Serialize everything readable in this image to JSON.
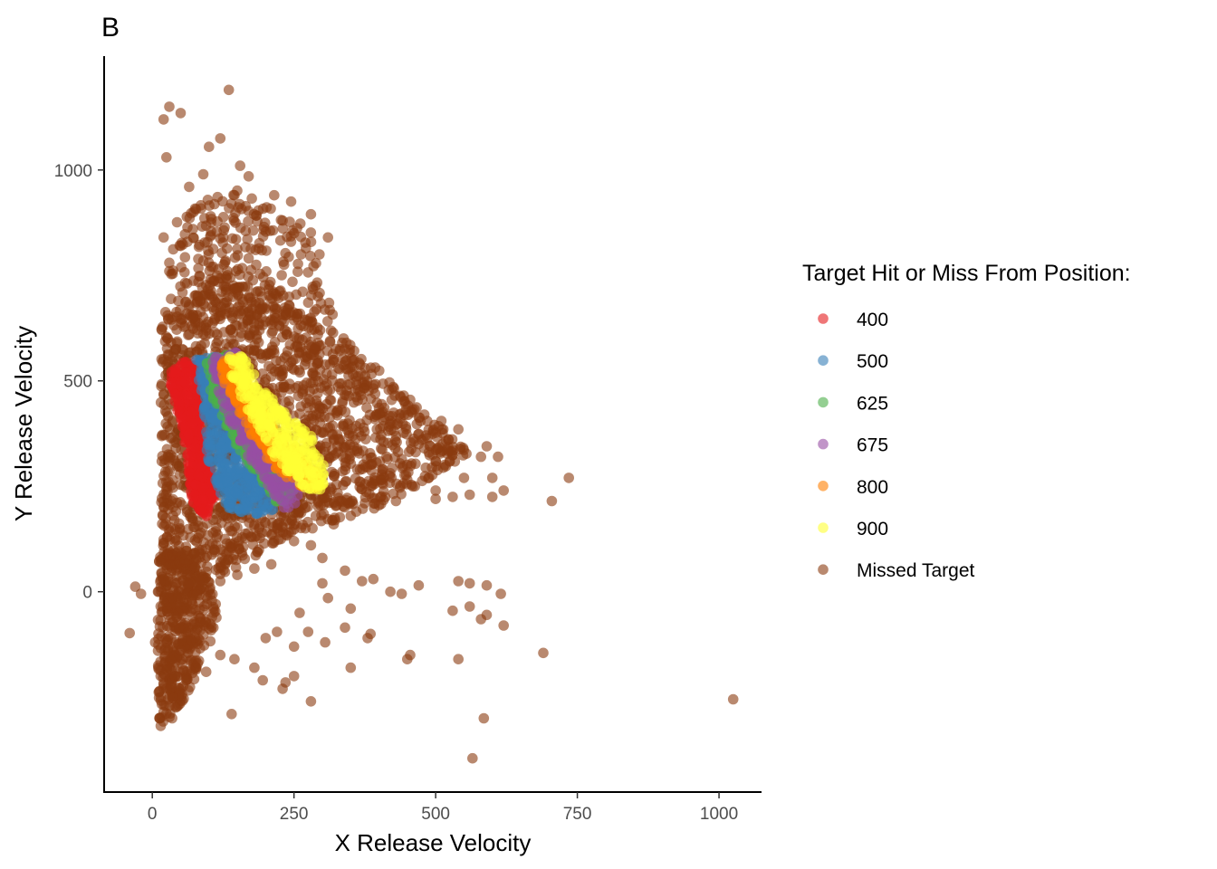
{
  "chart_data": {
    "type": "scatter",
    "panel_tag": "B",
    "title": "",
    "xlabel": "X Release Velocity",
    "ylabel": "Y Release Velocity",
    "xlim": [
      -85,
      1075
    ],
    "ylim": [
      -475,
      1270
    ],
    "x_ticks": [
      0,
      250,
      500,
      750,
      1000
    ],
    "x_tick_labels": [
      "0",
      "250",
      "500",
      "750",
      "1000"
    ],
    "y_ticks": [
      0,
      500,
      1000
    ],
    "y_tick_labels": [
      "0",
      "500",
      "1000"
    ],
    "grid": false,
    "legend": {
      "title": "Target Hit or Miss From Position:",
      "placement": "right",
      "entries": [
        {
          "label": "400",
          "color": "#E41A1C"
        },
        {
          "label": "500",
          "color": "#377EB8"
        },
        {
          "label": "625",
          "color": "#4DAF4A"
        },
        {
          "label": "675",
          "color": "#984EA3"
        },
        {
          "label": "800",
          "color": "#FF7F00"
        },
        {
          "label": "900",
          "color": "#FFFF33"
        },
        {
          "label": "Missed Target",
          "color": "#8B3A0F"
        }
      ]
    },
    "point_alpha": 0.6,
    "series": [
      {
        "name": "Missed Target",
        "color": "#8B3A0F",
        "cloud": [
          {
            "region": "main-triangle",
            "vertices": [
              [
                15,
                -20
              ],
              [
                15,
                640
              ],
              [
                120,
                760
              ],
              [
                330,
                610
              ],
              [
                560,
                330
              ],
              [
                420,
                210
              ],
              [
                210,
                110
              ],
              [
                60,
                -20
              ]
            ],
            "count": 1800
          },
          {
            "region": "lower-column",
            "vertices": [
              [
                10,
                -330
              ],
              [
                10,
                100
              ],
              [
                80,
                100
              ],
              [
                120,
                -60
              ],
              [
                60,
                -260
              ]
            ],
            "count": 420
          },
          {
            "region": "upper-fan",
            "vertices": [
              [
                20,
                640
              ],
              [
                40,
                900
              ],
              [
                140,
                960
              ],
              [
                280,
                860
              ],
              [
                330,
                640
              ]
            ],
            "count": 260
          }
        ],
        "outliers": [
          [
            -30,
            12
          ],
          [
            -20,
            -5
          ],
          [
            -40,
            -98
          ],
          [
            30,
            1150
          ],
          [
            20,
            1120
          ],
          [
            50,
            1135
          ],
          [
            135,
            1190
          ],
          [
            100,
            1055
          ],
          [
            120,
            1075
          ],
          [
            25,
            1030
          ],
          [
            90,
            990
          ],
          [
            155,
            1010
          ],
          [
            170,
            985
          ],
          [
            65,
            960
          ],
          [
            145,
            940
          ],
          [
            215,
            940
          ],
          [
            245,
            925
          ],
          [
            230,
            880
          ],
          [
            280,
            895
          ],
          [
            250,
            850
          ],
          [
            310,
            840
          ],
          [
            20,
            840
          ],
          [
            30,
            780
          ],
          [
            50,
            820
          ],
          [
            30,
            760
          ],
          [
            295,
            800
          ],
          [
            455,
            455
          ],
          [
            480,
            420
          ],
          [
            510,
            405
          ],
          [
            540,
            385
          ],
          [
            590,
            345
          ],
          [
            610,
            320
          ],
          [
            580,
            320
          ],
          [
            600,
            270
          ],
          [
            620,
            240
          ],
          [
            560,
            230
          ],
          [
            600,
            225
          ],
          [
            735,
            270
          ],
          [
            705,
            215
          ],
          [
            550,
            270
          ],
          [
            500,
            240
          ],
          [
            530,
            225
          ],
          [
            500,
            220
          ],
          [
            400,
            205
          ],
          [
            375,
            210
          ],
          [
            350,
            180
          ],
          [
            320,
            160
          ],
          [
            430,
            215
          ],
          [
            280,
            110
          ],
          [
            300,
            80
          ],
          [
            340,
            50
          ],
          [
            370,
            25
          ],
          [
            300,
            20
          ],
          [
            310,
            -15
          ],
          [
            390,
            30
          ],
          [
            420,
            0
          ],
          [
            440,
            -5
          ],
          [
            470,
            15
          ],
          [
            540,
            25
          ],
          [
            560,
            20
          ],
          [
            590,
            15
          ],
          [
            615,
            -5
          ],
          [
            530,
            -45
          ],
          [
            560,
            -35
          ],
          [
            590,
            -55
          ],
          [
            620,
            -80
          ],
          [
            580,
            -65
          ],
          [
            380,
            -110
          ],
          [
            385,
            -100
          ],
          [
            450,
            -160
          ],
          [
            455,
            -150
          ],
          [
            540,
            -160
          ],
          [
            690,
            -145
          ],
          [
            1025,
            -255
          ],
          [
            585,
            -300
          ],
          [
            565,
            -395
          ],
          [
            340,
            -85
          ],
          [
            305,
            -120
          ],
          [
            275,
            -95
          ],
          [
            250,
            -130
          ],
          [
            220,
            -95
          ],
          [
            200,
            -110
          ],
          [
            235,
            -215
          ],
          [
            250,
            -200
          ],
          [
            230,
            -230
          ],
          [
            195,
            -210
          ],
          [
            180,
            -180
          ],
          [
            140,
            -290
          ],
          [
            280,
            -260
          ],
          [
            350,
            -180
          ],
          [
            350,
            -40
          ],
          [
            260,
            -50
          ],
          [
            145,
            -160
          ],
          [
            120,
            -150
          ],
          [
            95,
            -190
          ],
          [
            80,
            -170
          ],
          [
            60,
            -155
          ],
          [
            40,
            -270
          ],
          [
            35,
            -300
          ],
          [
            45,
            -250
          ],
          [
            20,
            -285
          ],
          [
            15,
            -250
          ],
          [
            25,
            -230
          ],
          [
            40,
            -200
          ],
          [
            60,
            -210
          ],
          [
            30,
            -180
          ],
          [
            50,
            -140
          ],
          [
            10,
            -140
          ],
          [
            5,
            -120
          ],
          [
            255,
            260
          ],
          [
            280,
            220
          ],
          [
            330,
            215
          ],
          [
            360,
            190
          ],
          [
            260,
            190
          ],
          [
            220,
            150
          ],
          [
            250,
            120
          ],
          [
            210,
            65
          ],
          [
            180,
            55
          ],
          [
            150,
            40
          ],
          [
            120,
            25
          ]
        ]
      },
      {
        "name": "400",
        "color": "#E41A1C",
        "cloud": [
          {
            "region": "band",
            "vertices": [
              [
                55,
                545
              ],
              [
                95,
                548
              ],
              [
                80,
                470
              ],
              [
                95,
                320
              ],
              [
                115,
                240
              ],
              [
                95,
                175
              ],
              [
                70,
                215
              ],
              [
                55,
                380
              ],
              [
                35,
                470
              ],
              [
                30,
                520
              ]
            ],
            "count": 420
          }
        ]
      },
      {
        "name": "500",
        "color": "#377EB8",
        "cloud": [
          {
            "region": "band",
            "vertices": [
              [
                75,
                550
              ],
              [
                125,
                560
              ],
              [
                125,
                470
              ],
              [
                150,
                380
              ],
              [
                200,
                270
              ],
              [
                215,
                190
              ],
              [
                170,
                180
              ],
              [
                130,
                200
              ],
              [
                100,
                300
              ],
              [
                90,
                400
              ],
              [
                85,
                480
              ]
            ],
            "count": 420
          }
        ]
      },
      {
        "name": "625",
        "color": "#4DAF4A",
        "cloud": [
          {
            "region": "band",
            "vertices": [
              [
                95,
                550
              ],
              [
                140,
                565
              ],
              [
                140,
                470
              ],
              [
                175,
                390
              ],
              [
                225,
                310
              ],
              [
                255,
                250
              ],
              [
                225,
                200
              ],
              [
                190,
                270
              ],
              [
                150,
                340
              ],
              [
                120,
                420
              ],
              [
                100,
                480
              ]
            ],
            "count": 320
          }
        ]
      },
      {
        "name": "675",
        "color": "#984EA3",
        "cloud": [
          {
            "region": "band",
            "vertices": [
              [
                105,
                555
              ],
              [
                150,
                570
              ],
              [
                150,
                480
              ],
              [
                185,
                400
              ],
              [
                240,
                320
              ],
              [
                270,
                260
              ],
              [
                245,
                175
              ],
              [
                205,
                250
              ],
              [
                165,
                330
              ],
              [
                130,
                420
              ],
              [
                110,
                490
              ]
            ],
            "count": 280
          }
        ]
      },
      {
        "name": "800",
        "color": "#FF7F00",
        "cloud": [
          {
            "region": "band",
            "vertices": [
              [
                120,
                550
              ],
              [
                155,
                560
              ],
              [
                170,
                480
              ],
              [
                210,
                400
              ],
              [
                260,
                330
              ],
              [
                300,
                265
              ],
              [
                290,
                245
              ],
              [
                255,
                250
              ],
              [
                210,
                300
              ],
              [
                175,
                370
              ],
              [
                145,
                440
              ],
              [
                125,
                500
              ]
            ],
            "count": 280
          }
        ]
      },
      {
        "name": "900",
        "color": "#FFFF33",
        "cloud": [
          {
            "region": "band",
            "vertices": [
              [
                135,
                560
              ],
              [
                160,
                560
              ],
              [
                190,
                490
              ],
              [
                230,
                430
              ],
              [
                280,
                370
              ],
              [
                305,
                290
              ],
              [
                300,
                235
              ],
              [
                260,
                250
              ],
              [
                220,
                310
              ],
              [
                190,
                380
              ],
              [
                160,
                450
              ],
              [
                140,
                510
              ]
            ],
            "count": 300
          }
        ]
      }
    ]
  }
}
